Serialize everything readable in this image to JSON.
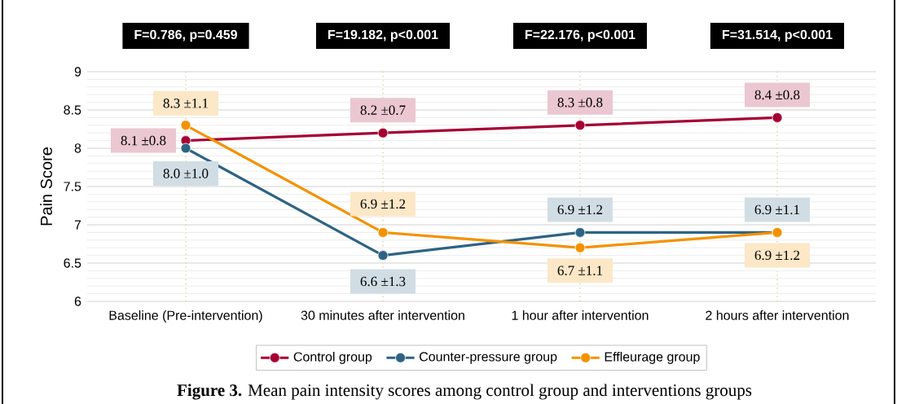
{
  "chart_data": {
    "type": "line",
    "ylabel": "Pain Score",
    "categories": [
      "Baseline (Pre-intervention)",
      "30 minutes after intervention",
      "1 hour after intervention",
      "2 hours after intervention"
    ],
    "series": [
      {
        "name": "Control group",
        "color": "#a50034",
        "values": [
          8.1,
          8.2,
          8.3,
          8.4
        ],
        "value_labels": [
          "8.1 ±0.8",
          "8.2 ±0.7",
          "8.3 ±0.8",
          "8.4 ±0.8"
        ]
      },
      {
        "name": "Counter-pressure group",
        "color": "#2e6384",
        "values": [
          8.0,
          6.6,
          6.9,
          6.9
        ],
        "value_labels": [
          "8.0 ±1.0",
          "6.6 ±1.3",
          "6.9 ±1.2",
          "6.9 ±1.1"
        ]
      },
      {
        "name": "Effleurage group",
        "color": "#f39200",
        "values": [
          8.3,
          6.9,
          6.7,
          6.9
        ],
        "value_labels": [
          "8.3 ±1.1",
          "6.9 ±1.2",
          "6.7 ±1.1",
          "6.9 ±1.2"
        ]
      }
    ],
    "ylim": [
      6,
      9
    ],
    "yticks": [
      6,
      6.5,
      7,
      7.5,
      8,
      8.5,
      9
    ],
    "grid": true,
    "legend": "bottom",
    "marker": "circle",
    "annotations": [
      "F=0.786, p=0.459",
      "F=19.182, p<0.001",
      "F=22.176, p<0.001",
      "F=31.514, p<0.001",
      "**Figure 3.** Mean pain intensity scores among control group and interventions groups"
    ]
  }
}
